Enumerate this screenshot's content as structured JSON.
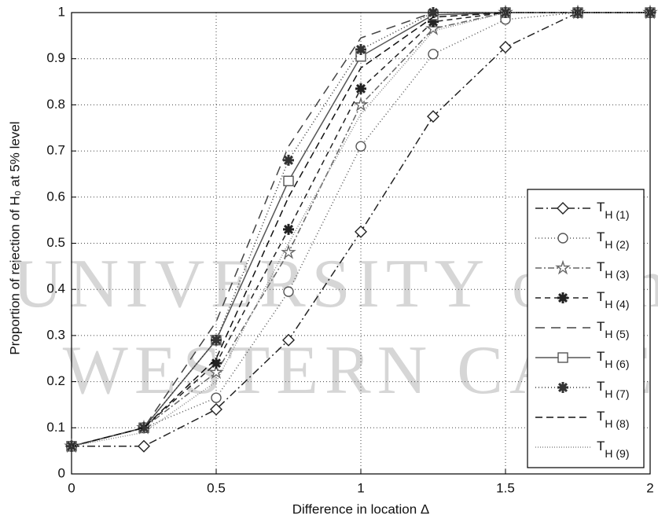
{
  "chart_data": {
    "type": "line",
    "xlabel": "Difference in location Δ",
    "ylabel": "Proportion of rejection of H₀ at 5% level",
    "watermark": [
      "UNIVERSITY of the",
      "WESTERN CAPE"
    ],
    "x": [
      0,
      0.25,
      0.5,
      0.75,
      1,
      1.25,
      1.5,
      1.75,
      2
    ],
    "xlim": [
      0,
      2
    ],
    "xticks": [
      0,
      0.5,
      1,
      1.5,
      2
    ],
    "ylim": [
      0,
      1
    ],
    "yticks": [
      0,
      0.1,
      0.2,
      0.3,
      0.4,
      0.5,
      0.6,
      0.7,
      0.8,
      0.9,
      1
    ],
    "grid": true,
    "legend": "lower right",
    "series": [
      {
        "name": "TH (1)",
        "color": "#222222",
        "dash": "10 4 2 4",
        "marker": "diamond",
        "values": [
          0.06,
          0.06,
          0.14,
          0.29,
          0.525,
          0.775,
          0.925,
          1,
          1
        ]
      },
      {
        "name": "TH (2)",
        "color": "#555555",
        "dash": "1 3",
        "marker": "circle",
        "values": [
          0.06,
          0.1,
          0.165,
          0.395,
          0.71,
          0.91,
          0.985,
          1,
          1
        ]
      },
      {
        "name": "TH (3)",
        "color": "#666666",
        "dash": "8 3 2 3",
        "marker": "star",
        "values": [
          0.06,
          0.1,
          0.22,
          0.48,
          0.8,
          0.965,
          1,
          1,
          1
        ]
      },
      {
        "name": "TH (4)",
        "color": "#222222",
        "dash": "7 5",
        "marker": "asterisk",
        "values": [
          0.06,
          0.1,
          0.24,
          0.53,
          0.835,
          0.98,
          1,
          1,
          1
        ]
      },
      {
        "name": "TH (5)",
        "color": "#444444",
        "dash": "12 8",
        "marker": "none",
        "values": [
          0.06,
          0.1,
          0.33,
          0.71,
          0.945,
          1,
          1,
          1,
          1
        ]
      },
      {
        "name": "TH (6)",
        "color": "#555555",
        "dash": "",
        "marker": "square",
        "values": [
          0.06,
          0.1,
          0.29,
          0.635,
          0.905,
          0.995,
          1,
          1,
          1
        ]
      },
      {
        "name": "TH (7)",
        "color": "#333333",
        "dash": "1 3",
        "marker": "asterisk",
        "values": [
          0.06,
          0.1,
          0.29,
          0.68,
          0.92,
          1,
          1,
          1,
          1
        ]
      },
      {
        "name": "TH (8)",
        "color": "#111111",
        "dash": "9 5",
        "marker": "none",
        "values": [
          0.06,
          0.1,
          0.25,
          0.6,
          0.88,
          0.99,
          1,
          1,
          1
        ]
      },
      {
        "name": "TH (9)",
        "color": "#888888",
        "dash": "1 2",
        "marker": "none",
        "values": [
          0.06,
          0.09,
          0.2,
          0.5,
          0.78,
          0.96,
          1,
          1,
          1
        ]
      }
    ]
  }
}
